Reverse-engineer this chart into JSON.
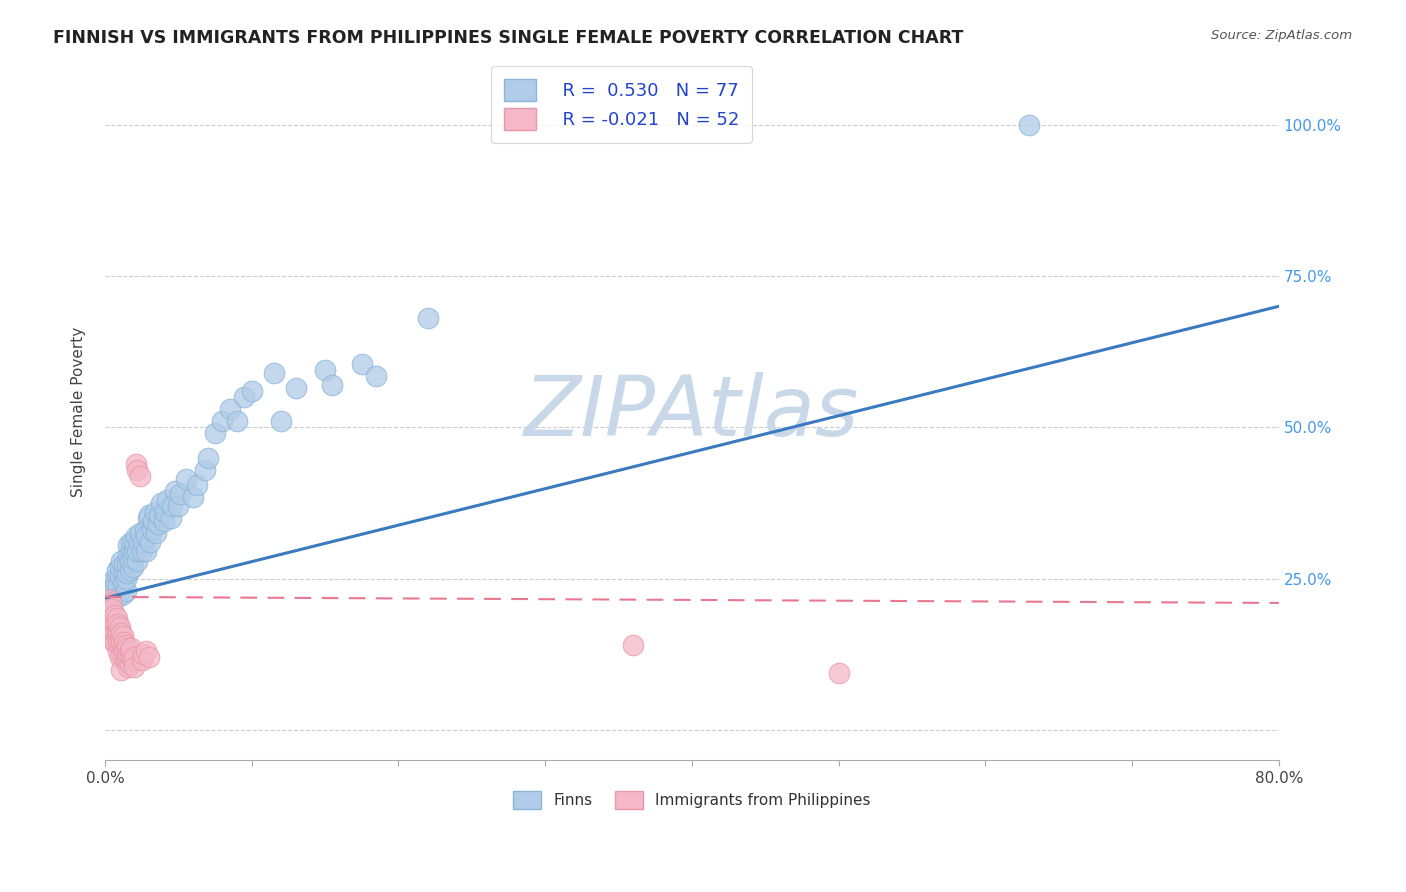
{
  "title": "FINNISH VS IMMIGRANTS FROM PHILIPPINES SINGLE FEMALE POVERTY CORRELATION CHART",
  "source": "Source: ZipAtlas.com",
  "ylabel": "Single Female Poverty",
  "xlim": [
    0.0,
    0.8
  ],
  "ylim": [
    -0.05,
    1.1
  ],
  "yticks": [
    0.0,
    0.25,
    0.5,
    0.75,
    1.0
  ],
  "ytick_labels": [
    "",
    "25.0%",
    "50.0%",
    "75.0%",
    "100.0%"
  ],
  "xticks": [
    0.0,
    0.1,
    0.2,
    0.3,
    0.4,
    0.5,
    0.6,
    0.7,
    0.8
  ],
  "xtick_labels_show": [
    "0.0%",
    "",
    "",
    "",
    "",
    "",
    "",
    "",
    "80.0%"
  ],
  "legend_r_finn": "R =  0.530",
  "legend_n_finn": "N = 77",
  "legend_r_phil": "R = -0.021",
  "legend_n_phil": "N = 52",
  "watermark": "ZIPAtlas",
  "watermark_color": "#c8d8e8",
  "finn_color": "#b0cce8",
  "phil_color": "#f4b8c8",
  "finn_line_color": "#3a7abf",
  "phil_line_color": "#e87890",
  "background_color": "#ffffff",
  "grid_color": "#cccccc",
  "finn_scatter": [
    [
      0.003,
      0.22
    ],
    [
      0.005,
      0.235
    ],
    [
      0.006,
      0.25
    ],
    [
      0.007,
      0.24
    ],
    [
      0.008,
      0.255
    ],
    [
      0.008,
      0.265
    ],
    [
      0.009,
      0.22
    ],
    [
      0.009,
      0.24
    ],
    [
      0.01,
      0.255
    ],
    [
      0.01,
      0.27
    ],
    [
      0.011,
      0.28
    ],
    [
      0.012,
      0.225
    ],
    [
      0.012,
      0.245
    ],
    [
      0.013,
      0.26
    ],
    [
      0.013,
      0.275
    ],
    [
      0.014,
      0.23
    ],
    [
      0.014,
      0.25
    ],
    [
      0.015,
      0.26
    ],
    [
      0.015,
      0.275
    ],
    [
      0.016,
      0.29
    ],
    [
      0.016,
      0.305
    ],
    [
      0.017,
      0.265
    ],
    [
      0.017,
      0.28
    ],
    [
      0.018,
      0.295
    ],
    [
      0.018,
      0.31
    ],
    [
      0.019,
      0.27
    ],
    [
      0.019,
      0.285
    ],
    [
      0.02,
      0.295
    ],
    [
      0.02,
      0.31
    ],
    [
      0.021,
      0.32
    ],
    [
      0.022,
      0.28
    ],
    [
      0.022,
      0.295
    ],
    [
      0.023,
      0.31
    ],
    [
      0.024,
      0.325
    ],
    [
      0.025,
      0.295
    ],
    [
      0.026,
      0.31
    ],
    [
      0.027,
      0.33
    ],
    [
      0.028,
      0.295
    ],
    [
      0.028,
      0.32
    ],
    [
      0.029,
      0.35
    ],
    [
      0.03,
      0.355
    ],
    [
      0.031,
      0.31
    ],
    [
      0.032,
      0.33
    ],
    [
      0.033,
      0.345
    ],
    [
      0.034,
      0.36
    ],
    [
      0.035,
      0.325
    ],
    [
      0.036,
      0.34
    ],
    [
      0.037,
      0.355
    ],
    [
      0.038,
      0.375
    ],
    [
      0.04,
      0.345
    ],
    [
      0.041,
      0.36
    ],
    [
      0.042,
      0.38
    ],
    [
      0.045,
      0.35
    ],
    [
      0.046,
      0.37
    ],
    [
      0.048,
      0.395
    ],
    [
      0.05,
      0.37
    ],
    [
      0.051,
      0.39
    ],
    [
      0.055,
      0.415
    ],
    [
      0.06,
      0.385
    ],
    [
      0.063,
      0.405
    ],
    [
      0.068,
      0.43
    ],
    [
      0.07,
      0.45
    ],
    [
      0.075,
      0.49
    ],
    [
      0.08,
      0.51
    ],
    [
      0.085,
      0.53
    ],
    [
      0.09,
      0.51
    ],
    [
      0.095,
      0.55
    ],
    [
      0.1,
      0.56
    ],
    [
      0.115,
      0.59
    ],
    [
      0.12,
      0.51
    ],
    [
      0.13,
      0.565
    ],
    [
      0.15,
      0.595
    ],
    [
      0.155,
      0.57
    ],
    [
      0.175,
      0.605
    ],
    [
      0.185,
      0.585
    ],
    [
      0.22,
      0.68
    ],
    [
      0.63,
      1.0
    ]
  ],
  "phil_scatter": [
    [
      0.003,
      0.215
    ],
    [
      0.004,
      0.21
    ],
    [
      0.005,
      0.2
    ],
    [
      0.005,
      0.185
    ],
    [
      0.006,
      0.175
    ],
    [
      0.006,
      0.16
    ],
    [
      0.006,
      0.145
    ],
    [
      0.007,
      0.19
    ],
    [
      0.007,
      0.175
    ],
    [
      0.007,
      0.16
    ],
    [
      0.007,
      0.145
    ],
    [
      0.008,
      0.185
    ],
    [
      0.008,
      0.17
    ],
    [
      0.008,
      0.155
    ],
    [
      0.009,
      0.175
    ],
    [
      0.009,
      0.16
    ],
    [
      0.009,
      0.145
    ],
    [
      0.009,
      0.13
    ],
    [
      0.01,
      0.17
    ],
    [
      0.01,
      0.155
    ],
    [
      0.01,
      0.14
    ],
    [
      0.01,
      0.12
    ],
    [
      0.011,
      0.16
    ],
    [
      0.011,
      0.145
    ],
    [
      0.011,
      0.1
    ],
    [
      0.012,
      0.155
    ],
    [
      0.012,
      0.14
    ],
    [
      0.012,
      0.12
    ],
    [
      0.013,
      0.145
    ],
    [
      0.013,
      0.13
    ],
    [
      0.014,
      0.14
    ],
    [
      0.014,
      0.12
    ],
    [
      0.015,
      0.135
    ],
    [
      0.015,
      0.115
    ],
    [
      0.016,
      0.125
    ],
    [
      0.016,
      0.105
    ],
    [
      0.017,
      0.13
    ],
    [
      0.017,
      0.11
    ],
    [
      0.018,
      0.12
    ],
    [
      0.018,
      0.135
    ],
    [
      0.019,
      0.115
    ],
    [
      0.02,
      0.12
    ],
    [
      0.02,
      0.105
    ],
    [
      0.021,
      0.44
    ],
    [
      0.022,
      0.43
    ],
    [
      0.024,
      0.42
    ],
    [
      0.025,
      0.115
    ],
    [
      0.026,
      0.125
    ],
    [
      0.028,
      0.13
    ],
    [
      0.03,
      0.12
    ],
    [
      0.36,
      0.14
    ],
    [
      0.5,
      0.095
    ]
  ],
  "finn_line": [
    [
      0.0,
      0.218
    ],
    [
      0.8,
      0.7
    ]
  ],
  "phil_line": [
    [
      0.0,
      0.22
    ],
    [
      0.8,
      0.21
    ]
  ]
}
